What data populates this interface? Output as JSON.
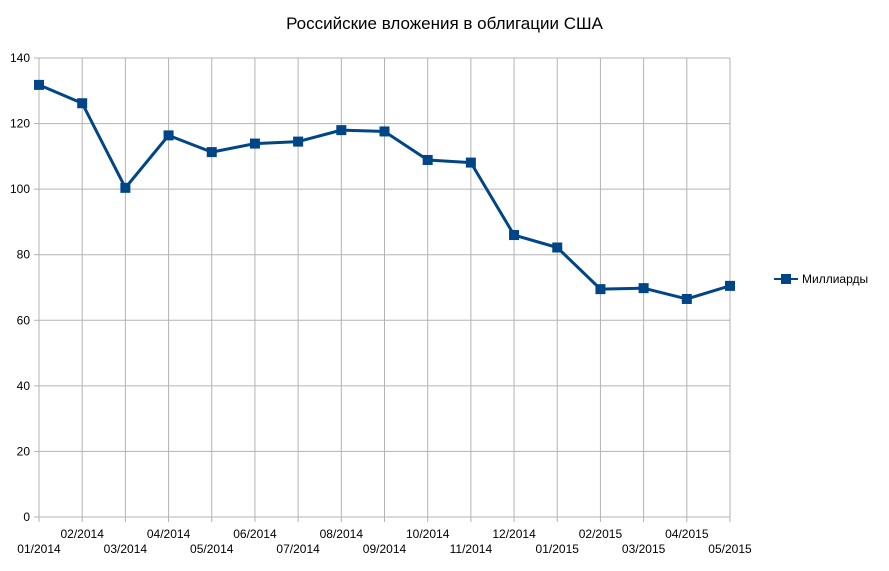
{
  "chart_data": {
    "type": "line",
    "title": "Российские вложения в облигации США",
    "xlabel": "",
    "ylabel": "",
    "categories": [
      "01/2014",
      "02/2014",
      "03/2014",
      "04/2014",
      "05/2014",
      "06/2014",
      "07/2014",
      "08/2014",
      "09/2014",
      "10/2014",
      "11/2014",
      "12/2014",
      "01/2015",
      "02/2015",
      "03/2015",
      "04/2015",
      "05/2015"
    ],
    "series": [
      {
        "name": "Миллиарды",
        "color": "#004586",
        "values": [
          131.8,
          126.2,
          100.4,
          116.4,
          111.3,
          113.9,
          114.5,
          118.0,
          117.6,
          108.9,
          108.1,
          86.0,
          82.2,
          69.5,
          69.8,
          66.5,
          70.5
        ]
      }
    ],
    "ylim": [
      0,
      140
    ],
    "yticks": [
      0,
      20,
      40,
      60,
      80,
      100,
      120,
      140
    ],
    "grid": true,
    "legend_position": "right",
    "gridline_color": "#b3b3b3"
  }
}
